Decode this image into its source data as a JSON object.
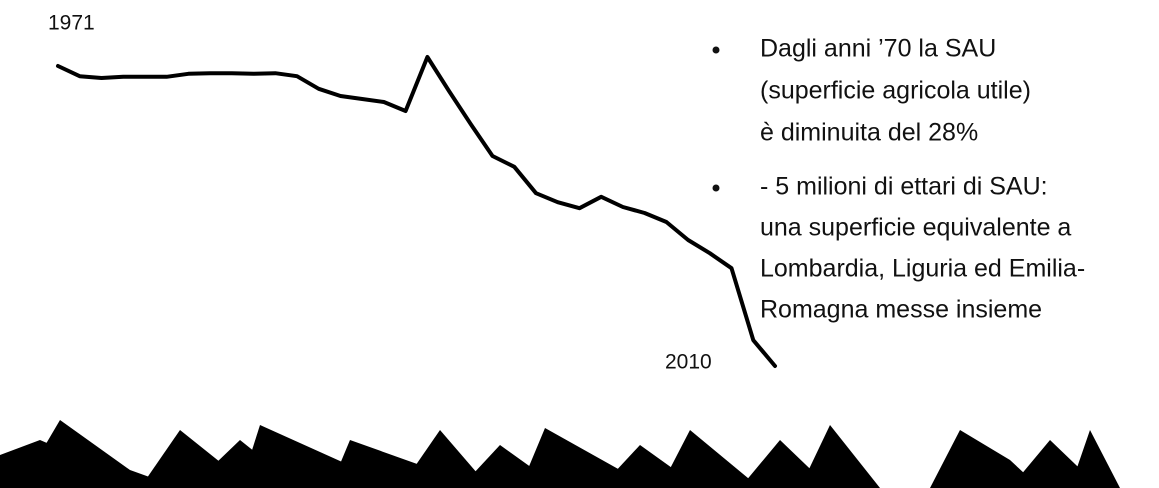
{
  "chart_data": {
    "type": "line",
    "categories": [
      "1971",
      null,
      null,
      null,
      null,
      null,
      null,
      null,
      null,
      null,
      null,
      null,
      null,
      null,
      null,
      null,
      null,
      null,
      null,
      null,
      null,
      null,
      null,
      null,
      null,
      null,
      null,
      null,
      null,
      null,
      null,
      null,
      null,
      "2010"
    ],
    "values": [
      17.9,
      17.73,
      17.7,
      17.72,
      17.72,
      17.72,
      17.77,
      17.78,
      17.78,
      17.77,
      17.78,
      17.73,
      17.52,
      17.4,
      17.35,
      17.3,
      17.15,
      18.05,
      17.48,
      16.93,
      16.4,
      16.22,
      15.78,
      15.63,
      15.53,
      15.72,
      15.55,
      15.45,
      15.3,
      15.0,
      14.78,
      14.53,
      13.33,
      12.9
    ],
    "color": "#000000",
    "ylim": [
      12.5,
      18.5
    ],
    "annotations": [
      [
        "Dagli anni ’70 la SAU",
        "(superficie agricola utile)",
        "è diminuita del 28%"
      ],
      [
        "- 5 milioni di ettari di SAU:",
        "una superficie equivalente a",
        "Lombardia, Liguria ed Emilia-",
        "Romagna messe insieme"
      ]
    ]
  }
}
